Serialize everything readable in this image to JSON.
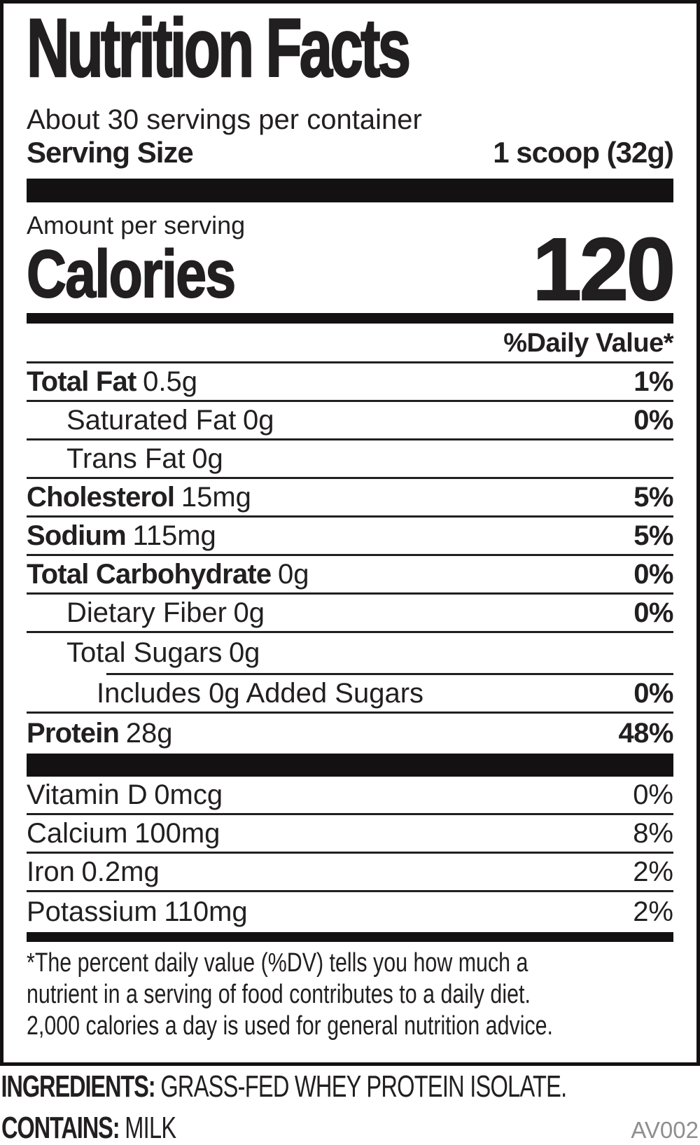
{
  "label": {
    "title": "Nutrition Facts",
    "servings_per_container": "About 30 servings per container",
    "serving_size_label": "Serving Size",
    "serving_size_value": "1 scoop (32g)",
    "amount_per_serving": "Amount per serving",
    "calories_label": "Calories",
    "calories_value": "120",
    "daily_value_header": "%Daily Value*",
    "nutrients": [
      {
        "name": "Total Fat",
        "amount": "0.5g",
        "dv": "1%"
      },
      {
        "name": "Saturated Fat",
        "amount": "0g",
        "dv": "0%"
      },
      {
        "name": "Trans Fat",
        "amount": "0g",
        "dv": ""
      },
      {
        "name": "Cholesterol",
        "amount": "15mg",
        "dv": "5%"
      },
      {
        "name": "Sodium",
        "amount": "115mg",
        "dv": "5%"
      },
      {
        "name": "Total Carbohydrate",
        "amount": "0g",
        "dv": "0%"
      },
      {
        "name": "Dietary Fiber",
        "amount": "0g",
        "dv": "0%"
      },
      {
        "name": "Total Sugars",
        "amount": "0g",
        "dv": ""
      },
      {
        "name": "Includes 0g Added Sugars",
        "amount": "",
        "dv": "0%"
      },
      {
        "name": "Protein",
        "amount": "28g",
        "dv": "48%"
      }
    ],
    "micronutrients": [
      {
        "name": "Vitamin D",
        "amount": "0mcg",
        "dv": "0%"
      },
      {
        "name": "Calcium",
        "amount": "100mg",
        "dv": "8%"
      },
      {
        "name": "Iron",
        "amount": "0.2mg",
        "dv": "2%"
      },
      {
        "name": "Potassium",
        "amount": "110mg",
        "dv": "2%"
      }
    ],
    "footnote_lines": [
      "*The percent daily value (%DV) tells you how much a",
      "nutrient in a serving of food contributes to a daily diet.",
      "2,000 calories a day is used for general nutrition advice."
    ],
    "ingredients_label": "INGREDIENTS:",
    "ingredients_value": "GRASS-FED WHEY PROTEIN ISOLATE.",
    "contains_label": "CONTAINS:",
    "contains_value": "MILK",
    "product_code": "AV002",
    "colors": {
      "text": "#221f20",
      "bars": "#141112",
      "code_gray": "#8f8f8f",
      "background": "#ffffff"
    }
  }
}
